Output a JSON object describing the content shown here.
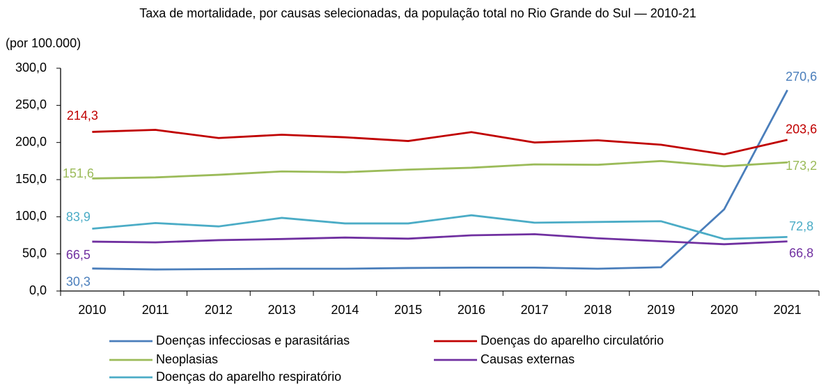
{
  "chart_data": {
    "type": "line",
    "title": "Taxa de mortalidade, por causas selecionadas, da população total no Rio Grande do Sul — 2010-21",
    "y_label": "(por 100.000)",
    "categories": [
      "2010",
      "2011",
      "2012",
      "2013",
      "2014",
      "2015",
      "2016",
      "2017",
      "2018",
      "2019",
      "2020",
      "2021"
    ],
    "ylim": [
      0,
      300
    ],
    "yticks": [
      {
        "value": 0,
        "label": "0,0"
      },
      {
        "value": 50,
        "label": "50,0"
      },
      {
        "value": 100,
        "label": "100,0"
      },
      {
        "value": 150,
        "label": "150,0"
      },
      {
        "value": 200,
        "label": "200,0"
      },
      {
        "value": 250,
        "label": "250,0"
      },
      {
        "value": 300,
        "label": "300,0"
      }
    ],
    "grid": false,
    "series": [
      {
        "name": "Doenças infecciosas e parasitárias",
        "color": "#4a7ebb",
        "values": [
          30.3,
          29,
          29.5,
          30,
          30,
          31,
          31.5,
          31.5,
          30,
          32,
          110,
          270.6
        ],
        "value_labels": [
          "30,3",
          null,
          null,
          null,
          null,
          null,
          null,
          null,
          null,
          null,
          null,
          "270,6"
        ]
      },
      {
        "name": "Doenças do aparelho circulatório",
        "color": "#c00000",
        "values": [
          214.3,
          217,
          206,
          210.5,
          207,
          202,
          214,
          200,
          203,
          197,
          184,
          203.6
        ],
        "value_labels": [
          "214,3",
          null,
          null,
          null,
          null,
          null,
          null,
          null,
          null,
          null,
          null,
          "203,6"
        ]
      },
      {
        "name": "Neoplasias",
        "color": "#9bbb59",
        "values": [
          151.6,
          153,
          156.5,
          161,
          160,
          163.5,
          166,
          170.5,
          170,
          175,
          168,
          173.2
        ],
        "value_labels": [
          "151,6",
          null,
          null,
          null,
          null,
          null,
          null,
          null,
          null,
          null,
          null,
          "173,2"
        ]
      },
      {
        "name": "Causas externas",
        "color": "#7030a0",
        "values": [
          66.5,
          65.5,
          68.5,
          70,
          72,
          70.5,
          75,
          76.5,
          71,
          67,
          63,
          66.8
        ],
        "value_labels": [
          "66,5",
          null,
          null,
          null,
          null,
          null,
          null,
          null,
          null,
          null,
          null,
          "66,8"
        ]
      },
      {
        "name": "Doenças do aparelho respiratório",
        "color": "#4bacc6",
        "values": [
          83.9,
          91.5,
          87,
          98.5,
          91,
          91,
          102,
          92,
          93,
          94,
          70,
          72.8
        ],
        "value_labels": [
          "83,9",
          null,
          null,
          null,
          null,
          null,
          null,
          null,
          null,
          null,
          null,
          "72,8"
        ]
      }
    ]
  }
}
